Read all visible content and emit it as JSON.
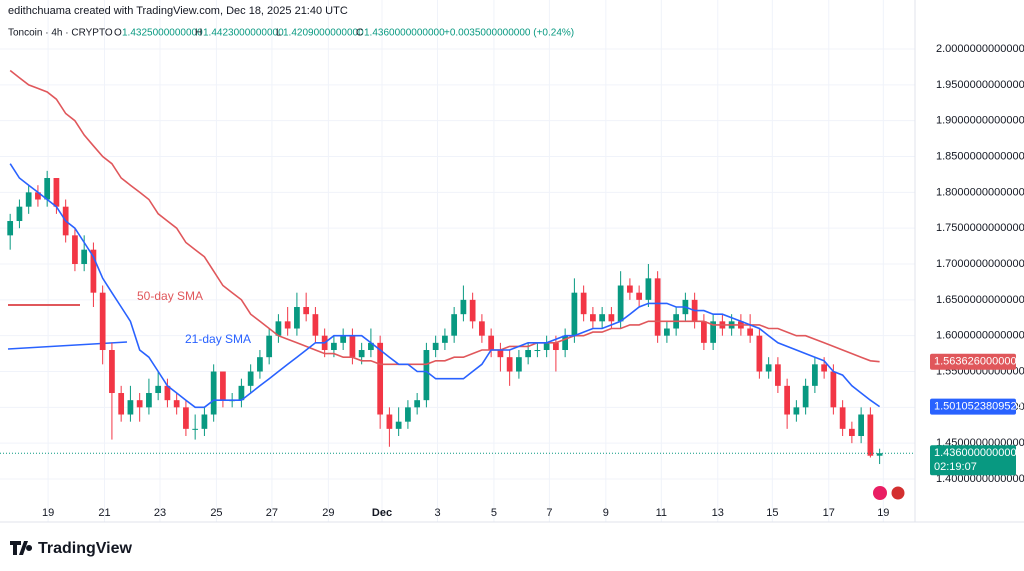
{
  "header": {
    "credit": "edithchuama created with TradingView.com, Dec 18, 2025 21:40 UTC",
    "symbol": "Toncoin · 4h · CRYPTO",
    "ohlc": [
      {
        "label": "O",
        "value": "1.4325000000000"
      },
      {
        "label": "H",
        "value": "1.4423000000000"
      },
      {
        "label": "L",
        "value": "1.4209000000000"
      },
      {
        "label": "C",
        "value": "1.4360000000000"
      }
    ],
    "change": "+0.0035000000000 (+0.24%)"
  },
  "chart_data": {
    "type": "candlestick",
    "open": [
      1.74,
      1.76,
      1.78,
      1.8,
      1.79,
      1.82,
      1.78,
      1.74,
      1.7,
      1.72,
      1.66,
      1.58,
      1.52,
      1.49,
      1.51,
      1.5,
      1.52,
      1.53,
      1.51,
      1.5,
      1.47,
      1.47,
      1.49,
      1.55,
      1.51,
      1.51,
      1.53,
      1.55,
      1.57,
      1.6,
      1.62,
      1.61,
      1.64,
      1.63,
      1.6,
      1.58,
      1.59,
      1.6,
      1.57,
      1.58,
      1.59,
      1.49,
      1.47,
      1.48,
      1.5,
      1.51,
      1.58,
      1.59,
      1.6,
      1.63,
      1.65,
      1.62,
      1.6,
      1.58,
      1.57,
      1.55,
      1.57,
      1.58,
      1.58,
      1.59,
      1.58,
      1.6,
      1.66,
      1.63,
      1.62,
      1.63,
      1.62,
      1.67,
      1.66,
      1.65,
      1.68,
      1.6,
      1.61,
      1.63,
      1.65,
      1.62,
      1.59,
      1.62,
      1.61,
      1.62,
      1.61,
      1.6,
      1.55,
      1.56,
      1.53,
      1.49,
      1.5,
      1.53,
      1.56,
      1.55,
      1.5,
      1.47,
      1.46,
      1.49,
      1.4325
    ],
    "high": [
      1.77,
      1.79,
      1.81,
      1.81,
      1.83,
      1.82,
      1.79,
      1.75,
      1.74,
      1.73,
      1.67,
      1.59,
      1.53,
      1.53,
      1.52,
      1.54,
      1.55,
      1.54,
      1.52,
      1.51,
      1.49,
      1.5,
      1.56,
      1.55,
      1.52,
      1.54,
      1.56,
      1.58,
      1.61,
      1.63,
      1.64,
      1.66,
      1.66,
      1.64,
      1.61,
      1.6,
      1.61,
      1.61,
      1.59,
      1.61,
      1.6,
      1.5,
      1.5,
      1.51,
      1.52,
      1.59,
      1.6,
      1.61,
      1.64,
      1.67,
      1.66,
      1.63,
      1.61,
      1.59,
      1.58,
      1.58,
      1.59,
      1.59,
      1.6,
      1.6,
      1.61,
      1.68,
      1.67,
      1.64,
      1.64,
      1.64,
      1.69,
      1.68,
      1.67,
      1.7,
      1.69,
      1.62,
      1.64,
      1.66,
      1.66,
      1.63,
      1.63,
      1.63,
      1.63,
      1.63,
      1.63,
      1.61,
      1.57,
      1.57,
      1.54,
      1.51,
      1.54,
      1.57,
      1.57,
      1.56,
      1.51,
      1.48,
      1.5,
      1.5,
      1.4423
    ],
    "low": [
      1.72,
      1.75,
      1.77,
      1.78,
      1.78,
      1.77,
      1.73,
      1.69,
      1.69,
      1.64,
      1.56,
      1.455,
      1.48,
      1.48,
      1.48,
      1.49,
      1.51,
      1.5,
      1.49,
      1.46,
      1.455,
      1.46,
      1.48,
      1.5,
      1.5,
      1.5,
      1.52,
      1.54,
      1.56,
      1.59,
      1.6,
      1.6,
      1.62,
      1.59,
      1.57,
      1.57,
      1.58,
      1.56,
      1.56,
      1.57,
      1.47,
      1.445,
      1.46,
      1.47,
      1.49,
      1.5,
      1.57,
      1.58,
      1.59,
      1.62,
      1.61,
      1.59,
      1.57,
      1.55,
      1.53,
      1.54,
      1.56,
      1.57,
      1.57,
      1.55,
      1.57,
      1.59,
      1.62,
      1.61,
      1.61,
      1.61,
      1.61,
      1.65,
      1.64,
      1.64,
      1.59,
      1.59,
      1.6,
      1.62,
      1.61,
      1.58,
      1.58,
      1.6,
      1.6,
      1.6,
      1.59,
      1.54,
      1.54,
      1.52,
      1.47,
      1.48,
      1.49,
      1.52,
      1.54,
      1.49,
      1.46,
      1.45,
      1.45,
      1.43,
      1.4209
    ],
    "close": [
      1.76,
      1.78,
      1.8,
      1.79,
      1.82,
      1.78,
      1.74,
      1.7,
      1.72,
      1.66,
      1.58,
      1.52,
      1.49,
      1.51,
      1.5,
      1.52,
      1.53,
      1.51,
      1.5,
      1.47,
      1.47,
      1.49,
      1.55,
      1.51,
      1.51,
      1.53,
      1.55,
      1.57,
      1.6,
      1.62,
      1.61,
      1.64,
      1.63,
      1.6,
      1.58,
      1.59,
      1.6,
      1.57,
      1.58,
      1.59,
      1.49,
      1.47,
      1.48,
      1.5,
      1.51,
      1.58,
      1.59,
      1.6,
      1.63,
      1.65,
      1.62,
      1.6,
      1.58,
      1.57,
      1.55,
      1.57,
      1.58,
      1.58,
      1.59,
      1.58,
      1.6,
      1.66,
      1.63,
      1.62,
      1.63,
      1.62,
      1.67,
      1.66,
      1.65,
      1.68,
      1.6,
      1.61,
      1.63,
      1.65,
      1.62,
      1.59,
      1.62,
      1.61,
      1.62,
      1.61,
      1.6,
      1.55,
      1.56,
      1.53,
      1.49,
      1.5,
      1.53,
      1.56,
      1.55,
      1.5,
      1.47,
      1.46,
      1.49,
      1.4325,
      1.436
    ],
    "last_close_label": "1.4360000000000",
    "countdown": "02:19:07",
    "up_color": "#089981",
    "down_color": "#f23645",
    "series": [
      {
        "name": "50-day SMA",
        "type": "line",
        "color": "#e0575b",
        "last_value_label": "1.5636260000000",
        "values": [
          1.97,
          1.96,
          1.95,
          1.945,
          1.94,
          1.93,
          1.91,
          1.9,
          1.88,
          1.865,
          1.85,
          1.84,
          1.82,
          1.81,
          1.8,
          1.79,
          1.77,
          1.76,
          1.75,
          1.73,
          1.72,
          1.71,
          1.69,
          1.67,
          1.66,
          1.65,
          1.63,
          1.62,
          1.61,
          1.6,
          1.595,
          1.59,
          1.585,
          1.58,
          1.575,
          1.575,
          1.57,
          1.57,
          1.565,
          1.565,
          1.56,
          1.56,
          1.56,
          1.56,
          1.56,
          1.56,
          1.565,
          1.565,
          1.57,
          1.57,
          1.575,
          1.58,
          1.58,
          1.58,
          1.585,
          1.585,
          1.585,
          1.59,
          1.59,
          1.59,
          1.595,
          1.6,
          1.6,
          1.605,
          1.605,
          1.61,
          1.61,
          1.615,
          1.615,
          1.62,
          1.62,
          1.62,
          1.62,
          1.62,
          1.62,
          1.62,
          1.615,
          1.615,
          1.615,
          1.615,
          1.615,
          1.615,
          1.61,
          1.61,
          1.605,
          1.6,
          1.6,
          1.595,
          1.59,
          1.585,
          1.58,
          1.575,
          1.57,
          1.565,
          1.563626
        ]
      },
      {
        "name": "21-day SMA",
        "type": "line",
        "color": "#2962ff",
        "last_value_label": "1.5010523809524",
        "values": [
          1.84,
          1.82,
          1.81,
          1.8,
          1.79,
          1.78,
          1.76,
          1.75,
          1.73,
          1.71,
          1.68,
          1.66,
          1.64,
          1.62,
          1.58,
          1.57,
          1.55,
          1.53,
          1.52,
          1.51,
          1.5,
          1.5,
          1.51,
          1.51,
          1.51,
          1.51,
          1.52,
          1.53,
          1.54,
          1.55,
          1.56,
          1.57,
          1.58,
          1.59,
          1.59,
          1.6,
          1.6,
          1.6,
          1.6,
          1.59,
          1.58,
          1.57,
          1.56,
          1.56,
          1.55,
          1.55,
          1.54,
          1.54,
          1.54,
          1.54,
          1.55,
          1.56,
          1.58,
          1.58,
          1.58,
          1.585,
          1.59,
          1.59,
          1.59,
          1.595,
          1.6,
          1.6,
          1.605,
          1.61,
          1.61,
          1.615,
          1.62,
          1.63,
          1.64,
          1.645,
          1.645,
          1.645,
          1.64,
          1.64,
          1.635,
          1.635,
          1.63,
          1.63,
          1.625,
          1.62,
          1.615,
          1.61,
          1.6,
          1.59,
          1.585,
          1.58,
          1.575,
          1.57,
          1.565,
          1.55,
          1.545,
          1.53,
          1.52,
          1.51,
          1.5010523809524
        ]
      }
    ],
    "xlim": [
      -1.1,
      97.5
    ],
    "xticks": [
      {
        "value": 4.1,
        "label": "19"
      },
      {
        "value": 10.2,
        "label": "21"
      },
      {
        "value": 16.2,
        "label": "23"
      },
      {
        "value": 22.3,
        "label": "25"
      },
      {
        "value": 28.3,
        "label": "27"
      },
      {
        "value": 34.4,
        "label": "29"
      },
      {
        "value": 40.2,
        "label": "Dec"
      },
      {
        "value": 46.2,
        "label": "3"
      },
      {
        "value": 52.3,
        "label": "5"
      },
      {
        "value": 58.3,
        "label": "7"
      },
      {
        "value": 64.4,
        "label": "9"
      },
      {
        "value": 70.4,
        "label": "11"
      },
      {
        "value": 76.5,
        "label": "13"
      },
      {
        "value": 82.4,
        "label": "15"
      },
      {
        "value": 88.5,
        "label": "17"
      },
      {
        "value": 94.4,
        "label": "19"
      }
    ],
    "ylim": [
      1.3428,
      2.0684
    ],
    "yticks": [
      {
        "value": 2.0,
        "label": "2.0000000000000"
      },
      {
        "value": 1.95,
        "label": "1.9500000000000"
      },
      {
        "value": 1.9,
        "label": "1.9000000000000"
      },
      {
        "value": 1.85,
        "label": "1.8500000000000"
      },
      {
        "value": 1.8,
        "label": "1.8000000000000"
      },
      {
        "value": 1.75,
        "label": "1.7500000000000"
      },
      {
        "value": 1.7,
        "label": "1.7000000000000"
      },
      {
        "value": 1.65,
        "label": "1.6500000000000"
      },
      {
        "value": 1.6,
        "label": "1.6000000000000"
      },
      {
        "value": 1.55,
        "label": "1.5500000000000"
      },
      {
        "value": 1.5,
        "label": "1.5000000000000"
      },
      {
        "value": 1.45,
        "label": "1.4500000000000"
      },
      {
        "value": 1.4,
        "label": "1.4000000000000"
      }
    ],
    "grid": true
  },
  "branding": "TradingView"
}
